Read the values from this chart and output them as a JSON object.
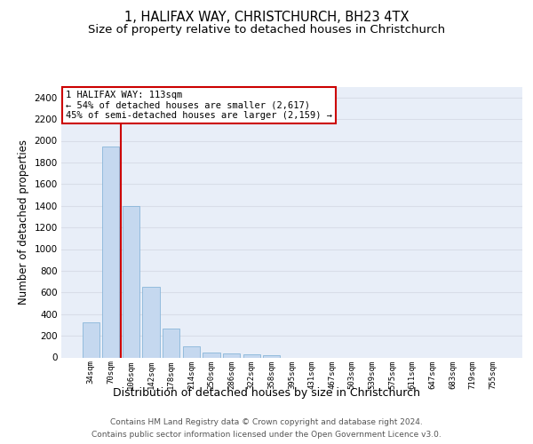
{
  "title1": "1, HALIFAX WAY, CHRISTCHURCH, BH23 4TX",
  "title2": "Size of property relative to detached houses in Christchurch",
  "xlabel": "Distribution of detached houses by size in Christchurch",
  "ylabel": "Number of detached properties",
  "footer1": "Contains HM Land Registry data © Crown copyright and database right 2024.",
  "footer2": "Contains public sector information licensed under the Open Government Licence v3.0.",
  "categories": [
    "34sqm",
    "70sqm",
    "106sqm",
    "142sqm",
    "178sqm",
    "214sqm",
    "250sqm",
    "286sqm",
    "322sqm",
    "358sqm",
    "395sqm",
    "431sqm",
    "467sqm",
    "503sqm",
    "539sqm",
    "575sqm",
    "611sqm",
    "647sqm",
    "683sqm",
    "719sqm",
    "755sqm"
  ],
  "values": [
    320,
    1950,
    1400,
    650,
    270,
    100,
    45,
    40,
    25,
    20,
    0,
    0,
    0,
    0,
    0,
    0,
    0,
    0,
    0,
    0,
    0
  ],
  "bar_color": "#c5d8ef",
  "bar_edgecolor": "#7aadd4",
  "ylim_max": 2500,
  "yticks": [
    0,
    200,
    400,
    600,
    800,
    1000,
    1200,
    1400,
    1600,
    1800,
    2000,
    2200,
    2400
  ],
  "vline_color": "#cc0000",
  "annotation_line1": "1 HALIFAX WAY: 113sqm",
  "annotation_line2": "← 54% of detached houses are smaller (2,617)",
  "annotation_line3": "45% of semi-detached houses are larger (2,159) →",
  "ann_box_edgecolor": "#cc0000",
  "bg_color": "#e8eef8",
  "grid_color": "#d8dde8",
  "title1_fontsize": 10.5,
  "title2_fontsize": 9.5,
  "xlabel_fontsize": 9,
  "ylabel_fontsize": 8.5,
  "footer_fontsize": 6.5
}
